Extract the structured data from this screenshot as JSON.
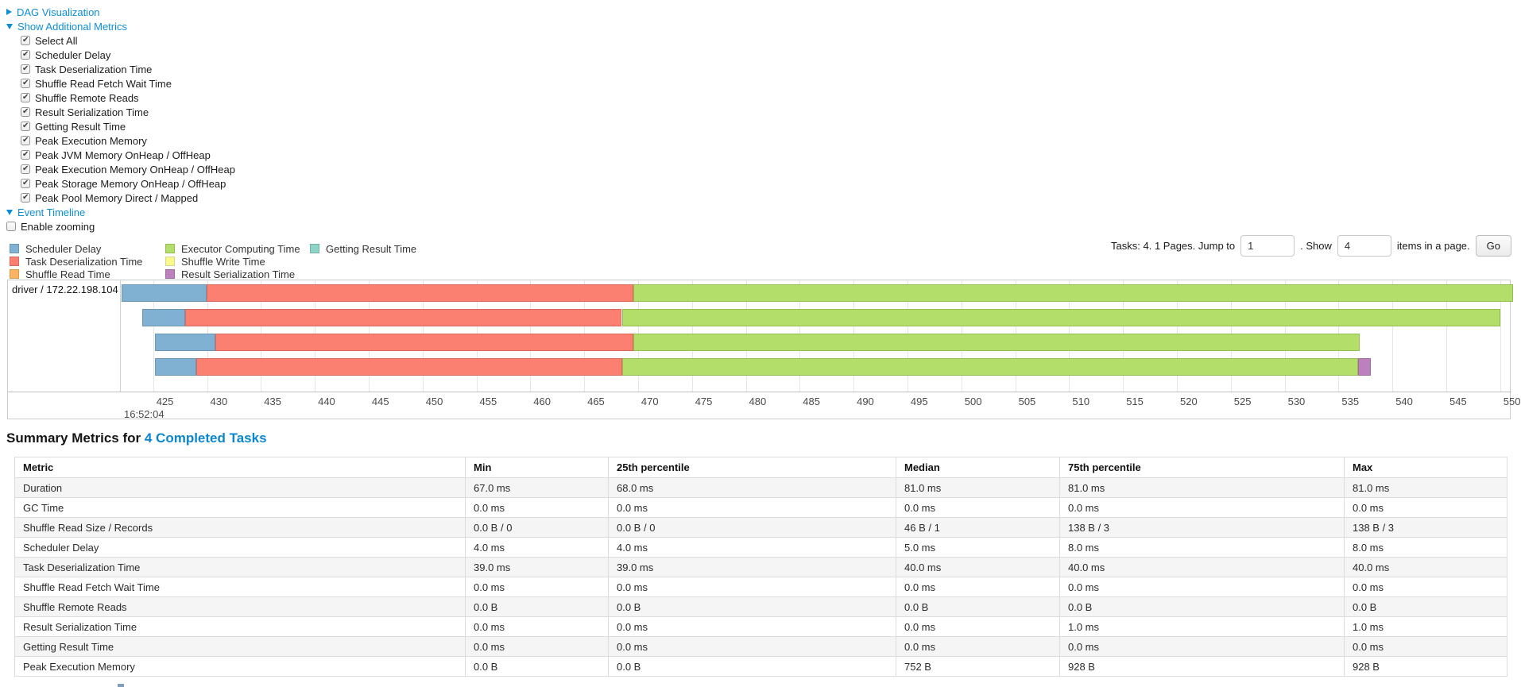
{
  "controls": {
    "dag_visualization": "DAG Visualization",
    "show_additional_metrics": "Show Additional Metrics",
    "metrics_checkboxes": [
      "Select All",
      "Scheduler Delay",
      "Task Deserialization Time",
      "Shuffle Read Fetch Wait Time",
      "Shuffle Remote Reads",
      "Result Serialization Time",
      "Getting Result Time",
      "Peak Execution Memory",
      "Peak JVM Memory OnHeap / OffHeap",
      "Peak Execution Memory OnHeap / OffHeap",
      "Peak Storage Memory OnHeap / OffHeap",
      "Peak Pool Memory Direct / Mapped"
    ],
    "event_timeline": "Event Timeline",
    "enable_zooming": "Enable zooming",
    "enable_zooming_checked": false
  },
  "pagination": {
    "tasks_text": "Tasks: 4. 1 Pages. Jump to",
    "jump_value": "1",
    "show_label": ". Show",
    "show_value": "4",
    "items_label": "items in a page.",
    "go_label": "Go"
  },
  "colors": {
    "scheduler-delay": {
      "fill": "#80B1D3",
      "stroke": "#6a97b8"
    },
    "task-deserialization": {
      "fill": "#FB8072",
      "stroke": "#d9695a"
    },
    "shuffle-read": {
      "fill": "#FDB462",
      "stroke": "#d99a4e"
    },
    "executor-computing": {
      "fill": "#B3DE69",
      "stroke": "#94bd52"
    },
    "shuffle-write": {
      "fill": "#F9F98A",
      "stroke": "#d5d596"
    },
    "result-serialization": {
      "fill": "#BC80BD",
      "stroke": "#a06ba1"
    },
    "getting-result": {
      "fill": "#8DD3C7",
      "stroke": "#75b0a6"
    }
  },
  "legend": {
    "columns": [
      [
        {
          "label": "Scheduler Delay",
          "color_key": "scheduler-delay"
        },
        {
          "label": "Task Deserialization Time",
          "color_key": "task-deserialization"
        },
        {
          "label": "Shuffle Read Time",
          "color_key": "shuffle-read"
        }
      ],
      [
        {
          "label": "Executor Computing Time",
          "color_key": "executor-computing"
        },
        {
          "label": "Shuffle Write Time",
          "color_key": "shuffle-write"
        },
        {
          "label": "Result Serialization Time",
          "color_key": "result-serialization"
        }
      ],
      [
        {
          "label": "Getting Result Time",
          "color_key": "getting-result"
        }
      ]
    ]
  },
  "chart_data": {
    "type": "timeline",
    "row_label": "driver / 172.22.198.104",
    "time_label": "16:52:04",
    "axis": {
      "min": 422.0,
      "max": 550.9,
      "tick_start": 425,
      "tick_end": 550,
      "tick_step": 5,
      "units": "ms"
    },
    "tasks": [
      {
        "segments": [
          {
            "name": "scheduler-delay",
            "start": 422.1,
            "end": 430.0
          },
          {
            "name": "task-deserialization",
            "start": 430.0,
            "end": 469.6
          },
          {
            "name": "executor-computing",
            "start": 469.6,
            "end": 551.2
          }
        ]
      },
      {
        "segments": [
          {
            "name": "scheduler-delay",
            "start": 424.0,
            "end": 428.0
          },
          {
            "name": "task-deserialization",
            "start": 428.0,
            "end": 468.5
          },
          {
            "name": "executor-computing",
            "start": 468.5,
            "end": 550.0
          }
        ]
      },
      {
        "segments": [
          {
            "name": "scheduler-delay",
            "start": 425.2,
            "end": 430.8
          },
          {
            "name": "task-deserialization",
            "start": 430.8,
            "end": 469.6
          },
          {
            "name": "executor-computing",
            "start": 469.6,
            "end": 537.0
          }
        ]
      },
      {
        "segments": [
          {
            "name": "scheduler-delay",
            "start": 425.2,
            "end": 429.0
          },
          {
            "name": "task-deserialization",
            "start": 429.0,
            "end": 468.5
          },
          {
            "name": "executor-computing",
            "start": 468.5,
            "end": 536.8
          },
          {
            "name": "result-serialization",
            "start": 536.8,
            "end": 538.0
          }
        ]
      }
    ]
  },
  "summary": {
    "title_prefix": "Summary Metrics for",
    "completed_tasks_link": "4 Completed Tasks",
    "table": {
      "headers": [
        "Metric",
        "Min",
        "25th percentile",
        "Median",
        "75th percentile",
        "Max"
      ],
      "rows": [
        [
          "Duration",
          "67.0 ms",
          "68.0 ms",
          "81.0 ms",
          "81.0 ms",
          "81.0 ms"
        ],
        [
          "GC Time",
          "0.0 ms",
          "0.0 ms",
          "0.0 ms",
          "0.0 ms",
          "0.0 ms"
        ],
        [
          "Shuffle Read Size / Records",
          "0.0 B / 0",
          "0.0 B / 0",
          "46 B / 1",
          "138 B / 3",
          "138 B / 3"
        ],
        [
          "Scheduler Delay",
          "4.0 ms",
          "4.0 ms",
          "5.0 ms",
          "8.0 ms",
          "8.0 ms"
        ],
        [
          "Task Deserialization Time",
          "39.0 ms",
          "39.0 ms",
          "40.0 ms",
          "40.0 ms",
          "40.0 ms"
        ],
        [
          "Shuffle Read Fetch Wait Time",
          "0.0 ms",
          "0.0 ms",
          "0.0 ms",
          "0.0 ms",
          "0.0 ms"
        ],
        [
          "Shuffle Remote Reads",
          "0.0 B",
          "0.0 B",
          "0.0 B",
          "0.0 B",
          "0.0 B"
        ],
        [
          "Result Serialization Time",
          "0.0 ms",
          "0.0 ms",
          "0.0 ms",
          "1.0 ms",
          "1.0 ms"
        ],
        [
          "Getting Result Time",
          "0.0 ms",
          "0.0 ms",
          "0.0 ms",
          "0.0 ms",
          "0.0 ms"
        ],
        [
          "Peak Execution Memory",
          "0.0 B",
          "0.0 B",
          "752 B",
          "928 B",
          "928 B"
        ]
      ]
    }
  }
}
